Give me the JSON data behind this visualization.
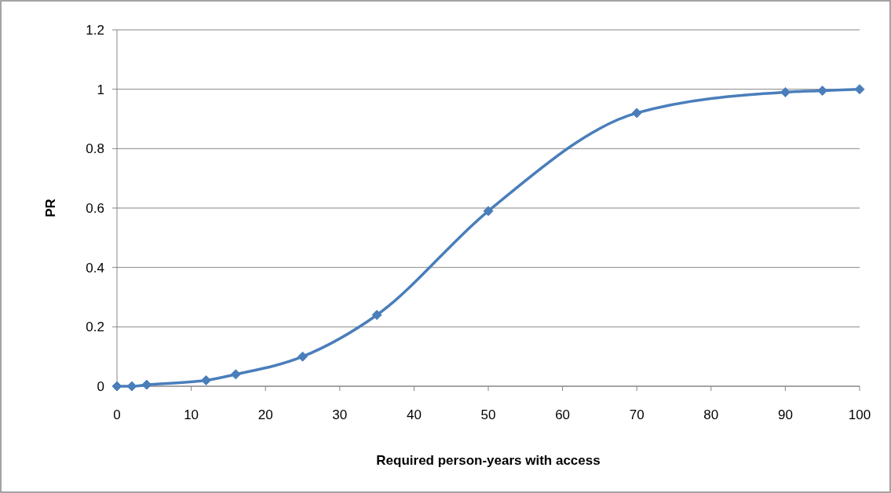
{
  "chart_data": {
    "type": "line",
    "xlabel": "Required person-years with access",
    "ylabel": "PR",
    "x": [
      0,
      2,
      4,
      12,
      16,
      25,
      35,
      50,
      70,
      90,
      95,
      100
    ],
    "series": [
      {
        "color": "#4a7ebb",
        "values": [
          0,
          0,
          0.005,
          0.02,
          0.04,
          0.1,
          0.24,
          0.59,
          0.92,
          0.99,
          0.995,
          1.0
        ]
      }
    ],
    "xlim": [
      0,
      100
    ],
    "xticks": [
      0,
      10,
      20,
      30,
      40,
      50,
      60,
      70,
      80,
      90,
      100
    ],
    "ylim": [
      0,
      1.2
    ],
    "yticks": [
      0,
      0.2,
      0.4,
      0.6,
      0.8,
      1,
      1.2
    ],
    "grid": "y",
    "marker": "diamond",
    "line_style": "solid"
  }
}
